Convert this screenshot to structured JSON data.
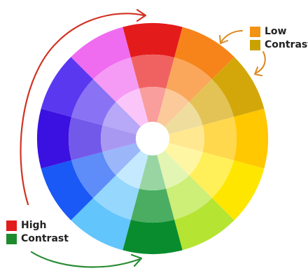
{
  "legend_low": {
    "line1": "Low",
    "line2": "Contrast",
    "color1": "#f39214",
    "color2": "#c9a200"
  },
  "legend_high": {
    "line1": "High",
    "line2": "Contrast",
    "color1": "#e21b1b",
    "color2": "#1e8a2e"
  },
  "arrows": {
    "high_contrast_color": "#d23224",
    "high_contrast_lower_color": "#2a8c35",
    "low_contrast_color": "#dd8a22"
  },
  "wheel": {
    "hub_color": "#ffffff",
    "segments": [
      {
        "name": "red",
        "colors": [
          "#e41b1b",
          "#f06262",
          "#f99d9d"
        ]
      },
      {
        "name": "red-orange",
        "colors": [
          "#f7841a",
          "#faa75b",
          "#fbc99a"
        ]
      },
      {
        "name": "yellow-orange",
        "colors": [
          "#d3a70a",
          "#e3c355",
          "#eedd9d"
        ]
      },
      {
        "name": "yellow",
        "colors": [
          "#ffc800",
          "#ffd84d",
          "#ffe88f"
        ]
      },
      {
        "name": "yellow-light",
        "colors": [
          "#ffe600",
          "#fff05a",
          "#fff6a4"
        ]
      },
      {
        "name": "yellow-green",
        "colors": [
          "#b5e432",
          "#cdee77",
          "#e3f5b2"
        ]
      },
      {
        "name": "green",
        "colors": [
          "#098c2e",
          "#4aad62",
          "#98d5a3"
        ]
      },
      {
        "name": "blue-light",
        "colors": [
          "#62c5fc",
          "#95d7fd",
          "#c5e9fe"
        ]
      },
      {
        "name": "blue",
        "colors": [
          "#1a59f5",
          "#5e8cf8",
          "#9bb7fa"
        ]
      },
      {
        "name": "blue-violet",
        "colors": [
          "#3a11e0",
          "#7359ea",
          "#a998f2"
        ]
      },
      {
        "name": "violet",
        "colors": [
          "#5a38f0",
          "#8a72f4",
          "#b7a8f8"
        ]
      },
      {
        "name": "magenta",
        "colors": [
          "#ef6cf0",
          "#f59af5",
          "#fac6fa"
        ]
      }
    ]
  }
}
